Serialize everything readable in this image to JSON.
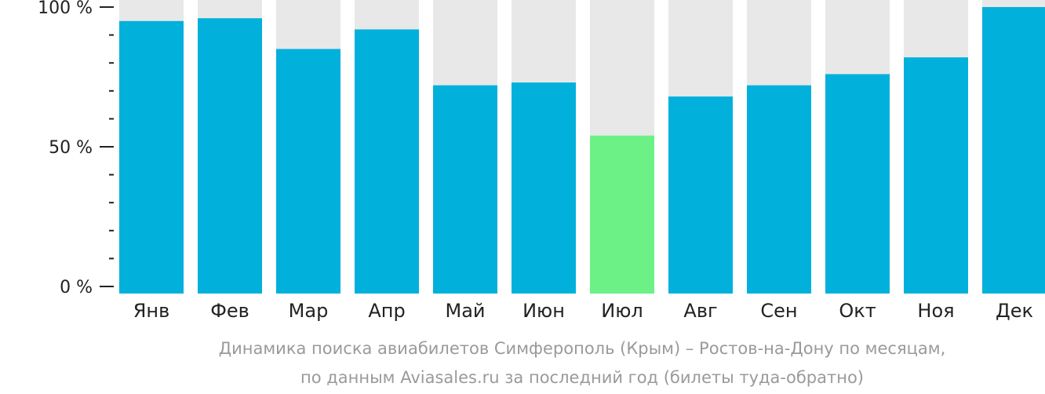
{
  "chart_data": {
    "type": "bar",
    "categories": [
      "Янв",
      "Фев",
      "Мар",
      "Апр",
      "Май",
      "Июн",
      "Июл",
      "Авг",
      "Сен",
      "Окт",
      "Ноя",
      "Дек"
    ],
    "values": [
      95,
      96,
      85,
      92,
      72,
      73,
      54,
      68,
      72,
      76,
      82,
      100
    ],
    "ylim": [
      0,
      100
    ],
    "yticks": [
      {
        "value": 100,
        "label": "100 %"
      },
      {
        "value": 50,
        "label": "50 %"
      },
      {
        "value": 0,
        "label": "0 %"
      }
    ],
    "minor_tick_step": 10,
    "highlight_index": 6,
    "colors": {
      "bar": "#02b0dc",
      "highlight": "#6bf185",
      "background_bar": "#e8e8e8",
      "axis": "#222222"
    },
    "grid": false,
    "legend": "none"
  },
  "caption": {
    "line1": "Динамика поиска авиабилетов Симферополь (Крым) – Ростов-на-Дону по месяцам,",
    "line2": "по данным Aviasales.ru за последний год (билеты туда-обратно)"
  }
}
